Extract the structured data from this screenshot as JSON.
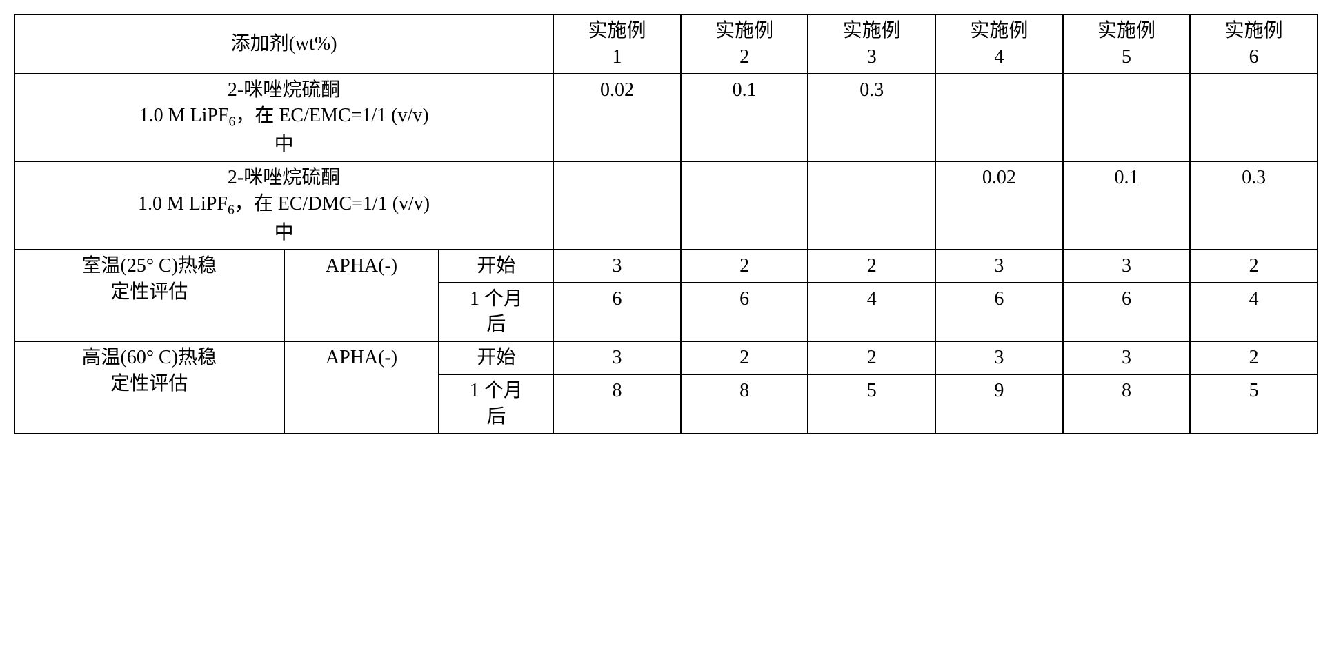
{
  "header": {
    "additive_label": "添加剂(wt%)",
    "example_prefix": "实施例",
    "example_numbers": [
      "1",
      "2",
      "3",
      "4",
      "5",
      "6"
    ]
  },
  "formulations": {
    "row1_line1": "2-咪唑烷硫酮",
    "row1_line2_a": "1.0 M LiPF",
    "row1_line2_sub": "6",
    "row1_line2_b": "，在 EC/EMC=1/1 (v/v)",
    "row1_line3": "中",
    "row1_values": [
      "0.02",
      "0.1",
      "0.3",
      "",
      "",
      ""
    ],
    "row2_line1": "2-咪唑烷硫酮",
    "row2_line2_a": "1.0 M LiPF",
    "row2_line2_sub": "6",
    "row2_line2_b": "，在 EC/DMC=1/1 (v/v)",
    "row2_line3": "中",
    "row2_values": [
      "",
      "",
      "",
      "0.02",
      "0.1",
      "0.3"
    ]
  },
  "evaluations": {
    "rt_label_line1": "室温(25° C)热稳",
    "rt_label_line2": "定性评估",
    "ht_label_line1": "高温(60° C)热稳",
    "ht_label_line2": "定性评估",
    "apha_label": "APHA(-)",
    "start_label": "开始",
    "after_label_line1": "1 个月",
    "after_label_line2": "后",
    "rt_start_values": [
      "3",
      "2",
      "2",
      "3",
      "3",
      "2"
    ],
    "rt_after_values": [
      "6",
      "6",
      "4",
      "6",
      "6",
      "4"
    ],
    "ht_start_values": [
      "3",
      "2",
      "2",
      "3",
      "3",
      "2"
    ],
    "ht_after_values": [
      "8",
      "8",
      "5",
      "9",
      "8",
      "5"
    ]
  }
}
